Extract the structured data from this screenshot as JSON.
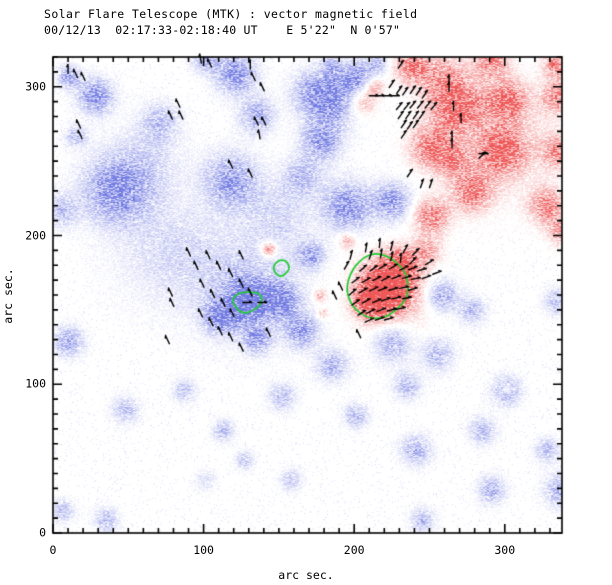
{
  "header": {
    "title": "Solar Flare Telescope (MTK) : vector magnetic field",
    "subtitle": "00/12/13  02:17:33-02:18:40 UT    E 5'22\"  N 0'57\""
  },
  "axes": {
    "xlabel": "arc sec.",
    "ylabel": "arc sec.",
    "x_ticks": [
      0,
      100,
      200,
      300
    ],
    "y_ticks": [
      0,
      100,
      200,
      300
    ],
    "x_range": [
      0,
      338
    ],
    "y_range": [
      0,
      320
    ],
    "minor_tick_step": 10,
    "major_tick_step": 100
  },
  "colors": {
    "positive_polarity": "#ed4b4b",
    "negative_polarity": "#6670e0",
    "contour": "#22cc33",
    "vector": "#000000",
    "frame": "#000000",
    "background": "#ffffff"
  },
  "chart_data": {
    "type": "heatmap",
    "title": "Solar Flare Telescope (MTK) : vector magnetic field",
    "date": "00/12/13",
    "time_ut": "02:17:33-02:18:40 UT",
    "position": "E 5'22\" N 0'57\"",
    "xlabel": "arc sec.",
    "ylabel": "arc sec.",
    "xlim": [
      0,
      338
    ],
    "ylim": [
      0,
      320
    ],
    "legend": "red = positive polarity, blue = negative polarity, green = contour, black = transverse field vectors",
    "blobs": [
      [
        10,
        307,
        8,
        0.45,
        -1
      ],
      [
        28,
        294,
        13,
        0.5,
        -1
      ],
      [
        15,
        267,
        8,
        0.3,
        -1
      ],
      [
        71,
        277,
        14,
        0.28,
        -1
      ],
      [
        101,
        319,
        10,
        0.35,
        -1
      ],
      [
        121,
        309,
        15,
        0.5,
        -1
      ],
      [
        135,
        281,
        13,
        0.38,
        -1
      ],
      [
        171,
        297,
        16,
        0.3,
        -1
      ],
      [
        185,
        314,
        8,
        0.3,
        -1
      ],
      [
        201,
        307,
        12,
        0.45,
        -1
      ],
      [
        215,
        316,
        8,
        0.3,
        -1
      ],
      [
        185,
        291,
        18,
        0.5,
        -1
      ],
      [
        178,
        264,
        15,
        0.45,
        -1
      ],
      [
        41,
        230,
        24,
        0.5,
        -1
      ],
      [
        5,
        217,
        12,
        0.3,
        -1
      ],
      [
        118,
        237,
        20,
        0.45,
        -1
      ],
      [
        165,
        240,
        14,
        0.3,
        -1
      ],
      [
        195,
        220,
        18,
        0.5,
        -1
      ],
      [
        225,
        223,
        14,
        0.45,
        -1
      ],
      [
        78,
        190,
        40,
        0.18,
        -1
      ],
      [
        130,
        165,
        38,
        0.25,
        -1
      ],
      [
        128,
        156,
        15,
        0.6,
        -1
      ],
      [
        111,
        146,
        12,
        0.5,
        -1
      ],
      [
        151,
        156,
        13,
        0.5,
        -1
      ],
      [
        165,
        136,
        12,
        0.45,
        -1
      ],
      [
        135,
        130,
        10,
        0.4,
        -1
      ],
      [
        171,
        187,
        10,
        0.4,
        -1
      ],
      [
        258,
        160,
        12,
        0.4,
        -1
      ],
      [
        278,
        150,
        10,
        0.3,
        -1
      ],
      [
        335,
        156,
        10,
        0.3,
        -1
      ],
      [
        185,
        113,
        12,
        0.35,
        -1
      ],
      [
        225,
        128,
        14,
        0.35,
        -1
      ],
      [
        255,
        120,
        12,
        0.3,
        -1
      ],
      [
        235,
        99,
        10,
        0.3,
        -1
      ],
      [
        201,
        79,
        9,
        0.3,
        -1
      ],
      [
        241,
        56,
        11,
        0.35,
        -1
      ],
      [
        158,
        36,
        8,
        0.25,
        -1
      ],
      [
        48,
        83,
        10,
        0.28,
        -1
      ],
      [
        10,
        129,
        11,
        0.4,
        -1
      ],
      [
        87,
        96,
        9,
        0.25,
        -1
      ],
      [
        113,
        69,
        8,
        0.3,
        -1
      ],
      [
        127,
        49,
        7,
        0.25,
        -1
      ],
      [
        152,
        92,
        10,
        0.3,
        -1
      ],
      [
        35,
        9,
        9,
        0.3,
        -1
      ],
      [
        6,
        15,
        8,
        0.3,
        -1
      ],
      [
        101,
        36,
        8,
        0.15,
        -1
      ],
      [
        285,
        69,
        10,
        0.3,
        -1
      ],
      [
        328,
        56,
        9,
        0.3,
        -1
      ],
      [
        291,
        29,
        10,
        0.35,
        -1
      ],
      [
        338,
        29,
        12,
        0.4,
        -1
      ],
      [
        245,
        9,
        9,
        0.3,
        -1
      ],
      [
        301,
        96,
        11,
        0.35,
        -1
      ],
      [
        60,
        250,
        28,
        0.18,
        -1
      ],
      [
        150,
        215,
        25,
        0.18,
        -1
      ],
      [
        268,
        287,
        18,
        0.6,
        1
      ],
      [
        301,
        291,
        14,
        0.55,
        1
      ],
      [
        335,
        316,
        10,
        0.5,
        1
      ],
      [
        335,
        294,
        12,
        0.45,
        1
      ],
      [
        251,
        260,
        15,
        0.5,
        1
      ],
      [
        298,
        257,
        16,
        0.55,
        1
      ],
      [
        335,
        257,
        12,
        0.4,
        1
      ],
      [
        278,
        230,
        14,
        0.5,
        1
      ],
      [
        251,
        213,
        13,
        0.5,
        1
      ],
      [
        328,
        220,
        13,
        0.45,
        1
      ],
      [
        338,
        203,
        10,
        0.4,
        1
      ],
      [
        248,
        190,
        10,
        0.3,
        1
      ],
      [
        238,
        314,
        12,
        0.5,
        1
      ],
      [
        291,
        317,
        12,
        0.45,
        1
      ],
      [
        295,
        264,
        40,
        0.2,
        1
      ],
      [
        258,
        306,
        18,
        0.35,
        1
      ],
      [
        221,
        166,
        16,
        0.85,
        1
      ],
      [
        211,
        156,
        12,
        0.7,
        1
      ],
      [
        231,
        180,
        12,
        0.6,
        1
      ],
      [
        225,
        163,
        26,
        0.35,
        1
      ],
      [
        143,
        191,
        6,
        0.5,
        1
      ],
      [
        177,
        160,
        5,
        0.3,
        1
      ],
      [
        179,
        148,
        4,
        0.25,
        1
      ],
      [
        195,
        197,
        6,
        0.3,
        1
      ],
      [
        301,
        97,
        4,
        0.3,
        1
      ],
      [
        265,
        250,
        12,
        0.35,
        1
      ],
      [
        205,
        290,
        10,
        0.3,
        1
      ],
      [
        213,
        300,
        7,
        0.3,
        1
      ]
    ],
    "contours": [
      {
        "name": "negative-core-contour",
        "points": [
          [
            119,
            156
          ],
          [
            121,
            160
          ],
          [
            126,
            162
          ],
          [
            133,
            162
          ],
          [
            137,
            161
          ],
          [
            139,
            158
          ],
          [
            138,
            154
          ],
          [
            135,
            151
          ],
          [
            130,
            148
          ],
          [
            125,
            148
          ],
          [
            121,
            152
          ]
        ]
      },
      {
        "name": "small-round-contour",
        "points": [
          [
            157,
            178
          ],
          [
            156,
            182
          ],
          [
            152,
            184
          ],
          [
            148,
            182
          ],
          [
            146,
            178
          ],
          [
            148,
            174
          ],
          [
            152,
            172
          ],
          [
            156,
            176
          ]
        ]
      },
      {
        "name": "sunspot-contour",
        "points": [
          [
            213,
            188
          ],
          [
            220,
            187
          ],
          [
            227,
            183
          ],
          [
            233,
            177
          ],
          [
            235,
            172
          ],
          [
            236,
            165
          ],
          [
            235,
            158
          ],
          [
            230,
            152
          ],
          [
            223,
            146
          ],
          [
            216,
            144
          ],
          [
            208,
            145
          ],
          [
            201,
            150
          ],
          [
            197,
            156
          ],
          [
            195,
            163
          ],
          [
            196,
            170
          ],
          [
            198,
            175
          ],
          [
            201,
            180
          ],
          [
            206,
            185
          ]
        ]
      }
    ],
    "vector_length_arcsec": 6,
    "vectors": [
      [
        10,
        312,
        90
      ],
      [
        15,
        309,
        115
      ],
      [
        20,
        307,
        115
      ],
      [
        98,
        319,
        100
      ],
      [
        104,
        316,
        115
      ],
      [
        131,
        315,
        90
      ],
      [
        133,
        307,
        115
      ],
      [
        139,
        300,
        115
      ],
      [
        83,
        289,
        115
      ],
      [
        78,
        281,
        115
      ],
      [
        85,
        281,
        115
      ],
      [
        17,
        275,
        115
      ],
      [
        18,
        268,
        115
      ],
      [
        135,
        277,
        115
      ],
      [
        140,
        277,
        115
      ],
      [
        137,
        268,
        100
      ],
      [
        118,
        248,
        115
      ],
      [
        131,
        242,
        115
      ],
      [
        90,
        189,
        115
      ],
      [
        110,
        180,
        115
      ],
      [
        118,
        175,
        115
      ],
      [
        125,
        168,
        115
      ],
      [
        131,
        162,
        115
      ],
      [
        99,
        168,
        115
      ],
      [
        106,
        161,
        115
      ],
      [
        113,
        155,
        115
      ],
      [
        119,
        148,
        115
      ],
      [
        78,
        162,
        115
      ],
      [
        79,
        155,
        115
      ],
      [
        98,
        148,
        115
      ],
      [
        105,
        142,
        115
      ],
      [
        111,
        136,
        115
      ],
      [
        118,
        132,
        115
      ],
      [
        76,
        130,
        115
      ],
      [
        125,
        187,
        115
      ],
      [
        103,
        187,
        115
      ],
      [
        95,
        180,
        115
      ],
      [
        129,
        155,
        0
      ],
      [
        139,
        155,
        0
      ],
      [
        143,
        135,
        115
      ],
      [
        125,
        125,
        115
      ],
      [
        203,
        134,
        115
      ],
      [
        211,
        187,
        70
      ],
      [
        218,
        188,
        80
      ],
      [
        225,
        186,
        75
      ],
      [
        231,
        185,
        85
      ],
      [
        239,
        183,
        45
      ],
      [
        206,
        178,
        40
      ],
      [
        213,
        178,
        35
      ],
      [
        219,
        179,
        30
      ],
      [
        226,
        179,
        30
      ],
      [
        233,
        178,
        25
      ],
      [
        239,
        178,
        20
      ],
      [
        245,
        177,
        15
      ],
      [
        201,
        170,
        35
      ],
      [
        208,
        170,
        30
      ],
      [
        215,
        171,
        25
      ],
      [
        221,
        171,
        25
      ],
      [
        228,
        172,
        20
      ],
      [
        235,
        172,
        15
      ],
      [
        241,
        171,
        10
      ],
      [
        248,
        172,
        20
      ],
      [
        199,
        162,
        40
      ],
      [
        206,
        163,
        30
      ],
      [
        213,
        164,
        25
      ],
      [
        219,
        164,
        20
      ],
      [
        226,
        164,
        15
      ],
      [
        233,
        165,
        10
      ],
      [
        239,
        164,
        15
      ],
      [
        201,
        155,
        35
      ],
      [
        208,
        156,
        28
      ],
      [
        215,
        156,
        22
      ],
      [
        221,
        157,
        18
      ],
      [
        228,
        158,
        12
      ],
      [
        235,
        158,
        10
      ],
      [
        205,
        148,
        30
      ],
      [
        211,
        149,
        25
      ],
      [
        218,
        150,
        20
      ],
      [
        225,
        150,
        15
      ],
      [
        231,
        151,
        12
      ],
      [
        210,
        143,
        25
      ],
      [
        217,
        144,
        18
      ],
      [
        223,
        144,
        15
      ],
      [
        191,
        166,
        115
      ],
      [
        187,
        160,
        115
      ],
      [
        195,
        180,
        60
      ],
      [
        198,
        187,
        75
      ],
      [
        208,
        192,
        80
      ],
      [
        217,
        195,
        85
      ],
      [
        225,
        193,
        75
      ],
      [
        234,
        191,
        60
      ],
      [
        241,
        189,
        45
      ],
      [
        250,
        182,
        30
      ],
      [
        255,
        175,
        20
      ],
      [
        213,
        294,
        0
      ],
      [
        217,
        294,
        0
      ],
      [
        222,
        294,
        0
      ],
      [
        227,
        294,
        0
      ],
      [
        230,
        298,
        55
      ],
      [
        234,
        297,
        55
      ],
      [
        239,
        298,
        55
      ],
      [
        243,
        297,
        55
      ],
      [
        247,
        295,
        55
      ],
      [
        230,
        287,
        50
      ],
      [
        235,
        287,
        50
      ],
      [
        239,
        288,
        50
      ],
      [
        244,
        288,
        50
      ],
      [
        249,
        288,
        50
      ],
      [
        253,
        287,
        50
      ],
      [
        231,
        281,
        55
      ],
      [
        236,
        281,
        55
      ],
      [
        241,
        281,
        55
      ],
      [
        245,
        281,
        55
      ],
      [
        233,
        275,
        55
      ],
      [
        237,
        274,
        55
      ],
      [
        241,
        275,
        55
      ],
      [
        233,
        268,
        55
      ],
      [
        263,
        305,
        90
      ],
      [
        263,
        300,
        90
      ],
      [
        266,
        287,
        90
      ],
      [
        271,
        279,
        90
      ],
      [
        265,
        267,
        90
      ],
      [
        265,
        262,
        90
      ],
      [
        225,
        302,
        55
      ],
      [
        231,
        315,
        55
      ],
      [
        237,
        242,
        55
      ],
      [
        245,
        235,
        70
      ],
      [
        251,
        235,
        70
      ],
      [
        286,
        255,
        0
      ],
      [
        285,
        254,
        45
      ]
    ]
  }
}
